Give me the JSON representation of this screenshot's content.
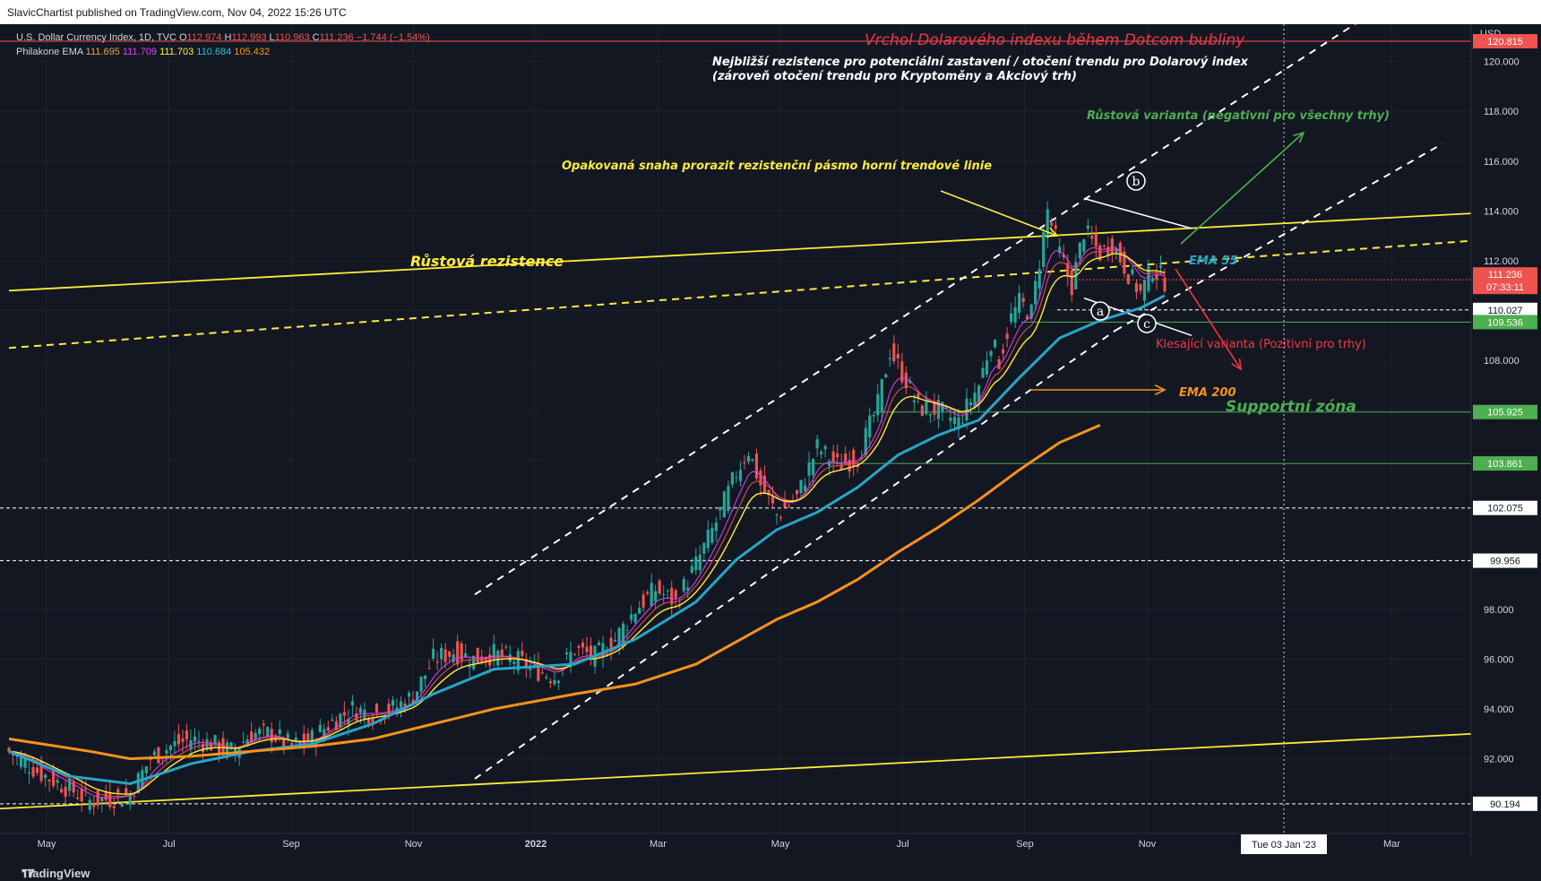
{
  "header": {
    "published_by": "SlavicChartist published on TradingView.com, Nov 04, 2022 15:26 UTC"
  },
  "legend": {
    "symbol": "U.S. Dollar Currency Index, 1D, TVC",
    "ohlc": [
      {
        "k": "O",
        "v": "112.974"
      },
      {
        "k": "H",
        "v": "112.993"
      },
      {
        "k": "L",
        "v": "110.963"
      },
      {
        "k": "C",
        "v": "111.236"
      }
    ],
    "change": "−1.744 (−1.54%)",
    "indicator_name": "Philakone EMA",
    "indicator_values": [
      "111.695",
      "111.709",
      "111.703",
      "110.684",
      "105.432"
    ]
  },
  "footer": {
    "brand": "TradingView"
  },
  "chart_data": {
    "type": "candlestick",
    "currency": "USD",
    "x_ticks": [
      "May",
      "Jul",
      "Sep",
      "Nov",
      "2022",
      "Mar",
      "May",
      "Jul",
      "Sep",
      "Nov",
      "Mar"
    ],
    "crosshair_date": "Tue 03 Jan '23",
    "y_ticks": [
      92.0,
      94.0,
      96.0,
      98.0,
      100.0,
      102.0,
      104.0,
      106.0,
      108.0,
      110.0,
      112.0,
      114.0,
      116.0,
      118.0,
      120.0
    ],
    "ylim": [
      89.0,
      121.5
    ],
    "price_labels": [
      {
        "value": "120.815",
        "color": "#ef5350"
      },
      {
        "value": "110.027",
        "color": "#131722"
      },
      {
        "value": "109.536",
        "color": "#4caf50"
      },
      {
        "value": "105.925",
        "color": "#4caf50"
      },
      {
        "value": "103.861",
        "color": "#4caf50"
      },
      {
        "value": "102.075",
        "color": "#131722"
      },
      {
        "value": "99.956",
        "color": "#131722"
      },
      {
        "value": "90.194",
        "color": "#131722"
      }
    ],
    "current_price": {
      "value": "111.236",
      "countdown": "07:33:11"
    },
    "close_path": [
      [
        0,
        92.3
      ],
      [
        8,
        91.4
      ],
      [
        15,
        90.8
      ],
      [
        20,
        90.3
      ],
      [
        25,
        90.4
      ],
      [
        30,
        90.6
      ],
      [
        35,
        92.0
      ],
      [
        40,
        92.5
      ],
      [
        45,
        92.8
      ],
      [
        50,
        92.6
      ],
      [
        55,
        92.3
      ],
      [
        60,
        93.0
      ],
      [
        65,
        93.0
      ],
      [
        70,
        92.5
      ],
      [
        75,
        92.8
      ],
      [
        80,
        93.5
      ],
      [
        85,
        94.0
      ],
      [
        90,
        93.8
      ],
      [
        95,
        94.0
      ],
      [
        100,
        94.5
      ],
      [
        105,
        96.0
      ],
      [
        110,
        96.3
      ],
      [
        115,
        96.0
      ],
      [
        120,
        96.2
      ],
      [
        125,
        96.0
      ],
      [
        130,
        95.6
      ],
      [
        135,
        95.3
      ],
      [
        140,
        96.4
      ],
      [
        145,
        96.1
      ],
      [
        150,
        96.8
      ],
      [
        155,
        98.0
      ],
      [
        160,
        98.8
      ],
      [
        165,
        98.3
      ],
      [
        170,
        99.8
      ],
      [
        175,
        101.5
      ],
      [
        180,
        103.5
      ],
      [
        183,
        104.4
      ],
      [
        186,
        103.0
      ],
      [
        190,
        101.8
      ],
      [
        195,
        102.5
      ],
      [
        200,
        104.5
      ],
      [
        205,
        103.8
      ],
      [
        210,
        104.1
      ],
      [
        215,
        106.2
      ],
      [
        218,
        108.4
      ],
      [
        222,
        107.2
      ],
      [
        225,
        106.1
      ],
      [
        230,
        106.0
      ],
      [
        235,
        105.5
      ],
      [
        240,
        107.0
      ],
      [
        243,
        108.8
      ],
      [
        245,
        108.0
      ],
      [
        248,
        109.7
      ],
      [
        250,
        110.3
      ],
      [
        253,
        109.9
      ],
      [
        255,
        112.0
      ],
      [
        257,
        114.0
      ],
      [
        260,
        112.3
      ],
      [
        263,
        111.0
      ],
      [
        266,
        113.2
      ],
      [
        270,
        112.3
      ],
      [
        273,
        112.7
      ],
      [
        277,
        111.5
      ],
      [
        280,
        110.7
      ],
      [
        283,
        111.7
      ],
      [
        286,
        111.2
      ]
    ],
    "series": [
      {
        "name": "EMA 55",
        "color": "#26a6c8",
        "values": [
          [
            0,
            92.3
          ],
          [
            15,
            91.3
          ],
          [
            30,
            91.0
          ],
          [
            45,
            91.8
          ],
          [
            60,
            92.3
          ],
          [
            75,
            92.6
          ],
          [
            90,
            93.4
          ],
          [
            105,
            94.6
          ],
          [
            120,
            95.6
          ],
          [
            140,
            95.8
          ],
          [
            155,
            96.8
          ],
          [
            170,
            98.3
          ],
          [
            180,
            100.0
          ],
          [
            190,
            101.2
          ],
          [
            200,
            101.9
          ],
          [
            210,
            102.9
          ],
          [
            220,
            104.2
          ],
          [
            230,
            105.0
          ],
          [
            240,
            105.6
          ],
          [
            250,
            107.3
          ],
          [
            260,
            108.9
          ],
          [
            270,
            109.6
          ],
          [
            280,
            110.1
          ],
          [
            286,
            110.6
          ]
        ]
      },
      {
        "name": "EMA 200",
        "color": "#f7931a",
        "values": [
          [
            0,
            92.8
          ],
          [
            20,
            92.3
          ],
          [
            30,
            92.0
          ],
          [
            45,
            92.1
          ],
          [
            60,
            92.3
          ],
          [
            75,
            92.5
          ],
          [
            90,
            92.8
          ],
          [
            105,
            93.4
          ],
          [
            120,
            94.0
          ],
          [
            140,
            94.6
          ],
          [
            155,
            95.0
          ],
          [
            170,
            95.8
          ],
          [
            180,
            96.7
          ],
          [
            190,
            97.6
          ],
          [
            200,
            98.3
          ],
          [
            210,
            99.2
          ],
          [
            220,
            100.3
          ],
          [
            230,
            101.3
          ],
          [
            240,
            102.4
          ],
          [
            250,
            103.6
          ],
          [
            260,
            104.7
          ],
          [
            270,
            105.4
          ]
        ]
      }
    ],
    "annotations": [
      {
        "text": "Vrchol Dolarového indexu během Dotcom bubliny",
        "color": "#f23645"
      },
      {
        "text": "Nejbližší rezistence pro potenciální zastavení / otočení trendu pro Dolarový index",
        "color": "#ffffff"
      },
      {
        "text": "(zároveň otočení trendu pro Kryptoměny a Akciový trh)",
        "color": "#ffffff"
      },
      {
        "text": "Růstová varianta (negativní pro všechny trhy)",
        "color": "#4caf50"
      },
      {
        "text": "Opakovaná snaha prorazit rezistenční pásmo horní trendové linie",
        "color": "#ffeb3b"
      },
      {
        "text": "Růstová rezistence",
        "color": "#ffeb3b"
      },
      {
        "text": "EMA 55",
        "color": "#26a6c8"
      },
      {
        "text": "Klesající varianta (Pozitivní pro trhy)",
        "color": "#f23645"
      },
      {
        "text": "EMA 200",
        "color": "#f7931a"
      },
      {
        "text": "Supportní zóna",
        "color": "#4caf50"
      }
    ],
    "wave_labels": [
      "a",
      "b",
      "c"
    ]
  }
}
